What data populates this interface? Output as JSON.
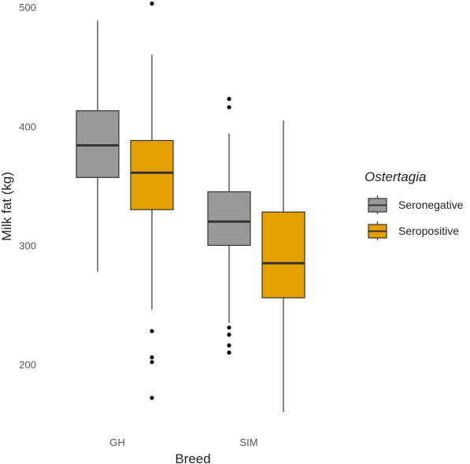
{
  "chart_data": {
    "type": "box",
    "xlabel": "Breed",
    "ylabel": "Milk fat (kg)",
    "ylim": [
      133,
      504
    ],
    "yticks": [
      200,
      300,
      400,
      500
    ],
    "categories": [
      "GH",
      "SIM"
    ],
    "legend": {
      "title": "Ostertagia",
      "placement": "right"
    },
    "grid": false,
    "series": [
      {
        "name": "Seronegative",
        "color": "#999999",
        "boxes": [
          {
            "category": "GH",
            "whisker_low": 278,
            "q1": 357,
            "median": 384,
            "q3": 413,
            "whisker_high": 489,
            "outliers": []
          },
          {
            "category": "SIM",
            "whisker_low": 235,
            "q1": 300,
            "median": 320,
            "q3": 345,
            "whisker_high": 394,
            "outliers": [
              423,
              416,
              231,
              225,
              216,
              210
            ]
          }
        ]
      },
      {
        "name": "Seropositive",
        "color": "#E69F00",
        "boxes": [
          {
            "category": "GH",
            "whisker_low": 246,
            "q1": 330,
            "median": 361,
            "q3": 388,
            "whisker_high": 460,
            "outliers": [
              503,
              228,
              206,
              202,
              172
            ]
          },
          {
            "category": "SIM",
            "whisker_low": 160,
            "q1": 256,
            "median": 285,
            "q3": 328,
            "whisker_high": 405,
            "outliers": []
          }
        ]
      }
    ]
  }
}
